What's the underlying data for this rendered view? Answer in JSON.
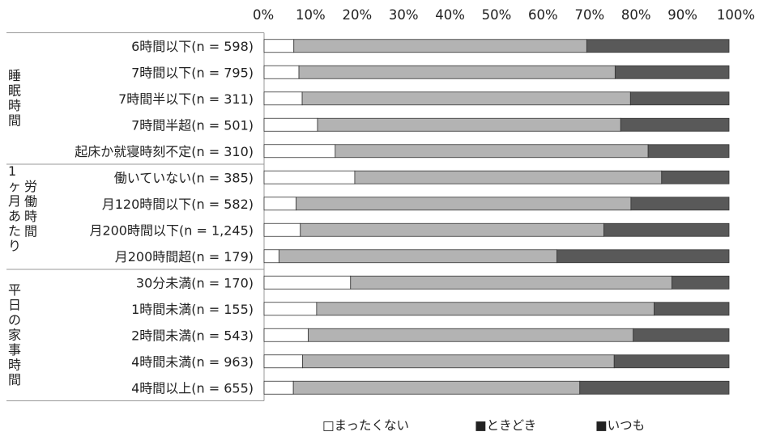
{
  "chart_data": {
    "type": "stacked-bar-horizontal-100",
    "x_ticks": [
      "0%",
      "10%",
      "20%",
      "30%",
      "40%",
      "50%",
      "60%",
      "70%",
      "80%",
      "90%",
      "100%"
    ],
    "xlim": [
      0,
      100
    ],
    "legend_position": "bottom",
    "series": [
      {
        "name": "□まったくない",
        "color": "#ffffff"
      },
      {
        "name": "■ときどき",
        "color": "#b3b3b3"
      },
      {
        "name": "■いつも",
        "color": "#595959"
      }
    ],
    "groups": [
      {
        "label": "睡\n眠\n時\n間",
        "rows": [
          0,
          1,
          2,
          3,
          4
        ]
      },
      {
        "label": "1\nヶ\n月\nあ\nた\nり",
        "label2": "労\n働\n時\n間",
        "rows": [
          5,
          6,
          7,
          8
        ]
      },
      {
        "label": "平\n日\nの\n家\n事\n時\n間",
        "rows": [
          9,
          10,
          11,
          12,
          13
        ]
      }
    ],
    "categories": [
      "6時間以下(n = 598)",
      "7時間以下(n = 795)",
      "7時間半以下(n = 311)",
      "7時間半超(n = 501)",
      "起床か就寝時刻不定(n = 310)",
      "働いていない(n = 385)",
      "月120時間以下(n = 582)",
      "月200時間以下(n = 1,245)",
      "月200時間超(n = 179)",
      "30分未満(n = 170)",
      "1時間未満(n = 155)",
      "2時間未満(n = 543)",
      "4時間未満(n = 963)",
      "4時間以上(n = 655)"
    ],
    "values": [
      [
        6.4,
        63.0,
        30.6
      ],
      [
        7.5,
        68.0,
        24.5
      ],
      [
        8.2,
        70.6,
        21.2
      ],
      [
        11.5,
        65.2,
        23.3
      ],
      [
        15.3,
        67.3,
        17.4
      ],
      [
        19.5,
        66.0,
        14.5
      ],
      [
        6.9,
        72.0,
        21.1
      ],
      [
        7.8,
        65.3,
        26.9
      ],
      [
        3.2,
        59.8,
        37.0
      ],
      [
        18.6,
        69.1,
        12.3
      ],
      [
        11.3,
        72.6,
        16.1
      ],
      [
        9.5,
        69.9,
        20.6
      ],
      [
        8.3,
        67.0,
        24.7
      ],
      [
        6.3,
        61.6,
        32.1
      ]
    ]
  }
}
